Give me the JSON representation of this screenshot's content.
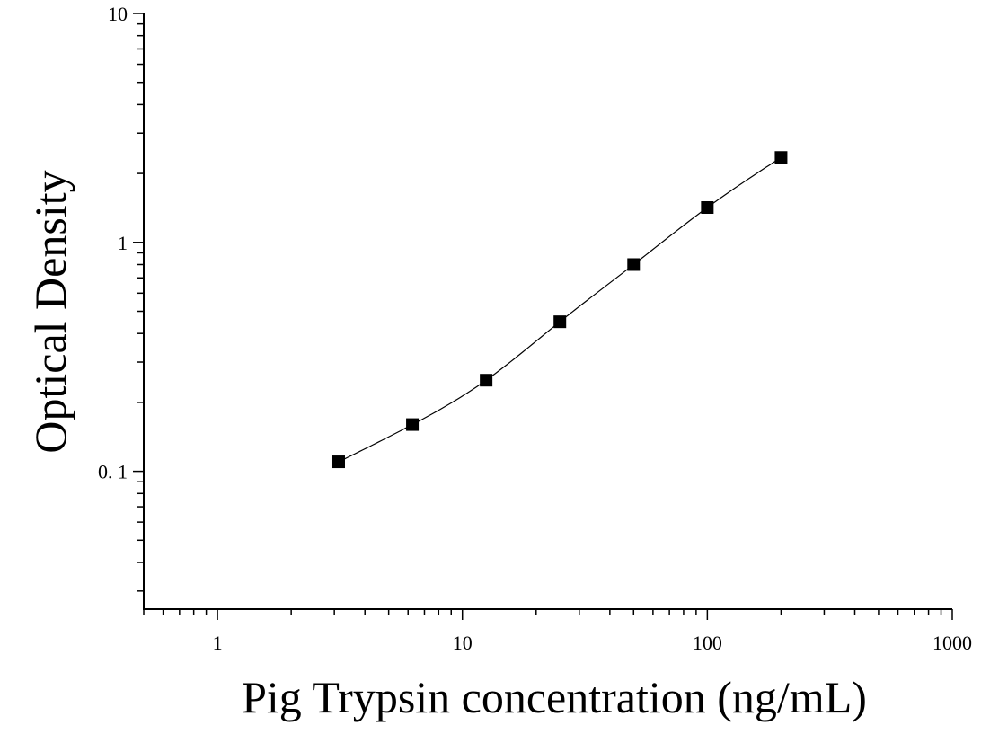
{
  "chart_data": {
    "type": "scatter",
    "title": "",
    "xlabel": "Pig Trypsin concentration (ng/mL)",
    "ylabel": "Optical Density",
    "xscale": "log",
    "yscale": "log",
    "xlim": [
      0.5,
      1000
    ],
    "ylim": [
      0.025,
      10
    ],
    "x_ticks": [
      {
        "value": 1,
        "label": "1"
      },
      {
        "value": 10,
        "label": "10"
      },
      {
        "value": 100,
        "label": "100"
      },
      {
        "value": 1000,
        "label": "1000"
      }
    ],
    "y_ticks": [
      {
        "value": 0.1,
        "label": "0. 1"
      },
      {
        "value": 1,
        "label": "1"
      },
      {
        "value": 10,
        "label": "10"
      }
    ],
    "grid": false,
    "legend": "none",
    "marker_color": "#000000",
    "fit_curve": true,
    "series": [
      {
        "x": [
          3.125,
          6.25,
          12.5,
          25,
          50,
          100,
          200
        ],
        "y": [
          0.11,
          0.16,
          0.25,
          0.45,
          0.8,
          1.42,
          2.35
        ]
      }
    ]
  }
}
